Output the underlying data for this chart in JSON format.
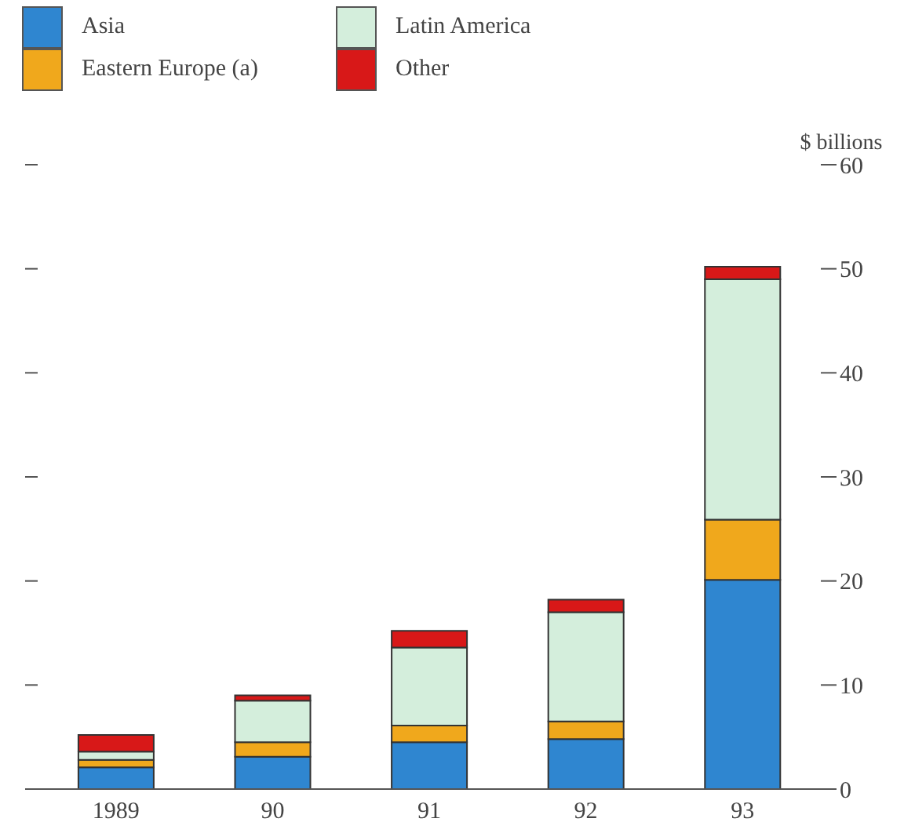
{
  "chart_data": {
    "type": "bar",
    "stacked": true,
    "ylabel": "$ billions",
    "categories": [
      "1989",
      "90",
      "91",
      "92",
      "93"
    ],
    "series": [
      {
        "name": "Asia",
        "color": "#2f86d0",
        "values": [
          2.1,
          3.1,
          4.5,
          4.8,
          20.1
        ]
      },
      {
        "name": "Eastern Europe (a)",
        "color": "#f0a81c",
        "values": [
          0.7,
          1.4,
          1.6,
          1.7,
          5.8
        ]
      },
      {
        "name": "Latin America",
        "color": "#d4eedc",
        "values": [
          0.8,
          4.0,
          7.5,
          10.5,
          23.1
        ]
      },
      {
        "name": "Other",
        "color": "#d81818",
        "values": [
          1.6,
          0.5,
          1.6,
          1.2,
          1.2
        ]
      }
    ],
    "ylim": [
      0,
      60
    ],
    "yticks": [
      0,
      10,
      20,
      30,
      40,
      50,
      60
    ],
    "grid": false,
    "legend": "top left"
  }
}
